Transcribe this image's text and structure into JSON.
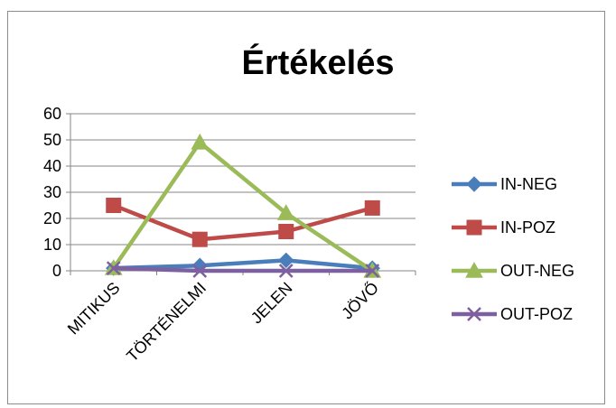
{
  "chart_data": {
    "type": "line",
    "title": "Értékelés",
    "xlabel": "",
    "ylabel": "",
    "categories": [
      "MITIKUS",
      "TÖRTÉNELMI",
      "JELEN",
      "JÖVŐ"
    ],
    "ylim": [
      0,
      60
    ],
    "yticks": [
      0,
      10,
      20,
      30,
      40,
      50,
      60
    ],
    "grid": "horizontal",
    "legend_position": "right",
    "series": [
      {
        "name": "IN-NEG",
        "values": [
          1,
          2,
          4,
          1
        ],
        "color": "#4a7ebb",
        "marker": "diamond"
      },
      {
        "name": "IN-POZ",
        "values": [
          25,
          12,
          15,
          24
        ],
        "color": "#be4b48",
        "marker": "square"
      },
      {
        "name": "OUT-NEG",
        "values": [
          1,
          49,
          22,
          0
        ],
        "color": "#9bbb59",
        "marker": "triangle"
      },
      {
        "name": "OUT-POZ",
        "values": [
          1,
          0,
          0,
          0
        ],
        "color": "#7d60a0",
        "marker": "x"
      }
    ]
  }
}
